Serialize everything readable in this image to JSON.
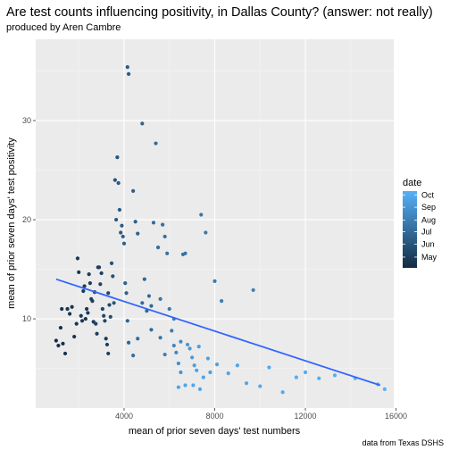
{
  "chart_data": {
    "type": "scatter",
    "title": "Are test counts influencing positivity, in Dallas County? (answer: not really)",
    "subtitle": "produced by Aren Cambre",
    "xlabel": "mean of prior seven days' test numbers",
    "ylabel": "mean of prior seven days' test positivity",
    "caption": "data from Texas DSHS",
    "xlim": [
      100,
      15900
    ],
    "ylim": [
      1,
      38.2
    ],
    "x_ticks": [
      4000,
      8000,
      12000,
      16000
    ],
    "x_tick_labels": [
      "4000",
      "8000",
      "12000",
      "16000"
    ],
    "y_ticks": [
      10,
      20,
      30
    ],
    "y_tick_labels": [
      "10",
      "20",
      "30"
    ],
    "grid": true,
    "legend": {
      "title": "date",
      "placement": "right",
      "labels": [
        "Oct",
        "Sep",
        "Aug",
        "Jul",
        "Jun",
        "May"
      ],
      "positions": [
        0.95,
        0.79,
        0.62,
        0.47,
        0.31,
        0.14
      ],
      "color_low": "#132B43",
      "color_high": "#56B1F7"
    },
    "trend_line": {
      "x": [
        1000,
        15300
      ],
      "y": [
        14.0,
        3.3
      ],
      "color": "#3366FF"
    },
    "points": [
      {
        "x": 1000,
        "y": 7.8,
        "t": 0.02
      },
      {
        "x": 1100,
        "y": 7.3,
        "t": 0.03
      },
      {
        "x": 1200,
        "y": 9.1,
        "t": 0.04
      },
      {
        "x": 1300,
        "y": 7.5,
        "t": 0.04
      },
      {
        "x": 1400,
        "y": 6.5,
        "t": 0.05
      },
      {
        "x": 1250,
        "y": 11.0,
        "t": 0.05
      },
      {
        "x": 1500,
        "y": 11.0,
        "t": 0.06
      },
      {
        "x": 1600,
        "y": 10.5,
        "t": 0.06
      },
      {
        "x": 1700,
        "y": 11.2,
        "t": 0.07
      },
      {
        "x": 1800,
        "y": 8.2,
        "t": 0.07
      },
      {
        "x": 1900,
        "y": 9.5,
        "t": 0.08
      },
      {
        "x": 1950,
        "y": 16.1,
        "t": 0.1
      },
      {
        "x": 2000,
        "y": 14.7,
        "t": 0.1
      },
      {
        "x": 2100,
        "y": 10.3,
        "t": 0.09
      },
      {
        "x": 2150,
        "y": 9.8,
        "t": 0.09
      },
      {
        "x": 2200,
        "y": 12.8,
        "t": 0.12
      },
      {
        "x": 2250,
        "y": 13.3,
        "t": 0.13
      },
      {
        "x": 2300,
        "y": 10.0,
        "t": 0.08
      },
      {
        "x": 2350,
        "y": 11.0,
        "t": 0.1
      },
      {
        "x": 2400,
        "y": 10.6,
        "t": 0.11
      },
      {
        "x": 2450,
        "y": 14.5,
        "t": 0.13
      },
      {
        "x": 2500,
        "y": 13.6,
        "t": 0.15
      },
      {
        "x": 2550,
        "y": 12.0,
        "t": 0.16
      },
      {
        "x": 2600,
        "y": 11.8,
        "t": 0.14
      },
      {
        "x": 2650,
        "y": 9.7,
        "t": 0.12
      },
      {
        "x": 2700,
        "y": 12.7,
        "t": 0.17
      },
      {
        "x": 2750,
        "y": 9.5,
        "t": 0.18
      },
      {
        "x": 2800,
        "y": 8.5,
        "t": 0.14
      },
      {
        "x": 2850,
        "y": 15.2,
        "t": 0.13
      },
      {
        "x": 2900,
        "y": 15.2,
        "t": 0.15
      },
      {
        "x": 2950,
        "y": 13.5,
        "t": 0.17
      },
      {
        "x": 3000,
        "y": 14.6,
        "t": 0.16
      },
      {
        "x": 3050,
        "y": 11.0,
        "t": 0.2
      },
      {
        "x": 3100,
        "y": 10.3,
        "t": 0.21
      },
      {
        "x": 3150,
        "y": 9.8,
        "t": 0.19
      },
      {
        "x": 3200,
        "y": 8.0,
        "t": 0.12
      },
      {
        "x": 3250,
        "y": 7.4,
        "t": 0.15
      },
      {
        "x": 3300,
        "y": 6.5,
        "t": 0.16
      },
      {
        "x": 3300,
        "y": 12.6,
        "t": 0.22
      },
      {
        "x": 3350,
        "y": 11.4,
        "t": 0.23
      },
      {
        "x": 3400,
        "y": 10.2,
        "t": 0.24
      },
      {
        "x": 3450,
        "y": 15.6,
        "t": 0.26
      },
      {
        "x": 3500,
        "y": 14.3,
        "t": 0.28
      },
      {
        "x": 3550,
        "y": 11.6,
        "t": 0.3
      },
      {
        "x": 3600,
        "y": 24.0,
        "t": 0.3
      },
      {
        "x": 3650,
        "y": 20.0,
        "t": 0.31
      },
      {
        "x": 3700,
        "y": 26.3,
        "t": 0.32
      },
      {
        "x": 3750,
        "y": 23.7,
        "t": 0.33
      },
      {
        "x": 3800,
        "y": 21.0,
        "t": 0.34
      },
      {
        "x": 3850,
        "y": 18.7,
        "t": 0.35
      },
      {
        "x": 3900,
        "y": 19.4,
        "t": 0.36
      },
      {
        "x": 3950,
        "y": 18.3,
        "t": 0.37
      },
      {
        "x": 4000,
        "y": 17.6,
        "t": 0.38
      },
      {
        "x": 4050,
        "y": 13.6,
        "t": 0.4
      },
      {
        "x": 4100,
        "y": 12.6,
        "t": 0.41
      },
      {
        "x": 4150,
        "y": 9.8,
        "t": 0.42
      },
      {
        "x": 4200,
        "y": 7.6,
        "t": 0.43
      },
      {
        "x": 4150,
        "y": 35.4,
        "t": 0.36
      },
      {
        "x": 4200,
        "y": 34.7,
        "t": 0.36
      },
      {
        "x": 4400,
        "y": 22.9,
        "t": 0.39
      },
      {
        "x": 4500,
        "y": 19.8,
        "t": 0.4
      },
      {
        "x": 4600,
        "y": 18.6,
        "t": 0.41
      },
      {
        "x": 4800,
        "y": 29.7,
        "t": 0.43
      },
      {
        "x": 4900,
        "y": 14.0,
        "t": 0.44
      },
      {
        "x": 5000,
        "y": 10.8,
        "t": 0.45
      },
      {
        "x": 5100,
        "y": 12.3,
        "t": 0.46
      },
      {
        "x": 5200,
        "y": 8.9,
        "t": 0.47
      },
      {
        "x": 5300,
        "y": 19.7,
        "t": 0.48
      },
      {
        "x": 5400,
        "y": 27.7,
        "t": 0.48
      },
      {
        "x": 5500,
        "y": 17.2,
        "t": 0.5
      },
      {
        "x": 5600,
        "y": 8.1,
        "t": 0.55
      },
      {
        "x": 5700,
        "y": 19.5,
        "t": 0.5
      },
      {
        "x": 5800,
        "y": 18.3,
        "t": 0.51
      },
      {
        "x": 5900,
        "y": 16.6,
        "t": 0.52
      },
      {
        "x": 6000,
        "y": 11.0,
        "t": 0.58
      },
      {
        "x": 6100,
        "y": 8.8,
        "t": 0.6
      },
      {
        "x": 6200,
        "y": 10.0,
        "t": 0.62
      },
      {
        "x": 6300,
        "y": 6.6,
        "t": 0.7
      },
      {
        "x": 6400,
        "y": 5.5,
        "t": 0.74
      },
      {
        "x": 6500,
        "y": 4.6,
        "t": 0.78
      },
      {
        "x": 6600,
        "y": 16.5,
        "t": 0.53
      },
      {
        "x": 6700,
        "y": 16.6,
        "t": 0.54
      },
      {
        "x": 6800,
        "y": 7.4,
        "t": 0.8
      },
      {
        "x": 6900,
        "y": 7.0,
        "t": 0.82
      },
      {
        "x": 7000,
        "y": 6.1,
        "t": 0.84
      },
      {
        "x": 7100,
        "y": 5.3,
        "t": 0.86
      },
      {
        "x": 7200,
        "y": 4.8,
        "t": 0.88
      },
      {
        "x": 7300,
        "y": 7.2,
        "t": 0.85
      },
      {
        "x": 7400,
        "y": 20.5,
        "t": 0.56
      },
      {
        "x": 7500,
        "y": 4.1,
        "t": 0.9
      },
      {
        "x": 7600,
        "y": 18.7,
        "t": 0.58
      },
      {
        "x": 7700,
        "y": 6.0,
        "t": 0.88
      },
      {
        "x": 7800,
        "y": 4.6,
        "t": 0.87
      },
      {
        "x": 8000,
        "y": 13.8,
        "t": 0.6
      },
      {
        "x": 8100,
        "y": 5.4,
        "t": 0.89
      },
      {
        "x": 8300,
        "y": 11.8,
        "t": 0.62
      },
      {
        "x": 8600,
        "y": 4.5,
        "t": 0.9
      },
      {
        "x": 9000,
        "y": 5.3,
        "t": 0.91
      },
      {
        "x": 9400,
        "y": 3.5,
        "t": 0.92
      },
      {
        "x": 9700,
        "y": 12.9,
        "t": 0.64
      },
      {
        "x": 10000,
        "y": 3.2,
        "t": 0.93
      },
      {
        "x": 10400,
        "y": 5.1,
        "t": 0.94
      },
      {
        "x": 11000,
        "y": 2.6,
        "t": 0.95
      },
      {
        "x": 11600,
        "y": 4.1,
        "t": 0.96
      },
      {
        "x": 12000,
        "y": 4.6,
        "t": 0.96
      },
      {
        "x": 12600,
        "y": 4.0,
        "t": 0.97
      },
      {
        "x": 13300,
        "y": 4.3,
        "t": 0.98
      },
      {
        "x": 14200,
        "y": 4.0,
        "t": 0.98
      },
      {
        "x": 15200,
        "y": 3.4,
        "t": 0.99
      },
      {
        "x": 15500,
        "y": 2.9,
        "t": 1.0
      },
      {
        "x": 6400,
        "y": 3.1,
        "t": 0.9
      },
      {
        "x": 6700,
        "y": 3.3,
        "t": 0.91
      },
      {
        "x": 7050,
        "y": 3.3,
        "t": 0.92
      },
      {
        "x": 7350,
        "y": 2.9,
        "t": 0.91
      },
      {
        "x": 5800,
        "y": 6.4,
        "t": 0.62
      },
      {
        "x": 4400,
        "y": 6.3,
        "t": 0.52
      },
      {
        "x": 4600,
        "y": 8.0,
        "t": 0.5
      },
      {
        "x": 4800,
        "y": 11.6,
        "t": 0.48
      },
      {
        "x": 5600,
        "y": 12.0,
        "t": 0.55
      },
      {
        "x": 6500,
        "y": 7.7,
        "t": 0.72
      },
      {
        "x": 5200,
        "y": 11.3,
        "t": 0.47
      },
      {
        "x": 6200,
        "y": 7.3,
        "t": 0.66
      }
    ]
  }
}
